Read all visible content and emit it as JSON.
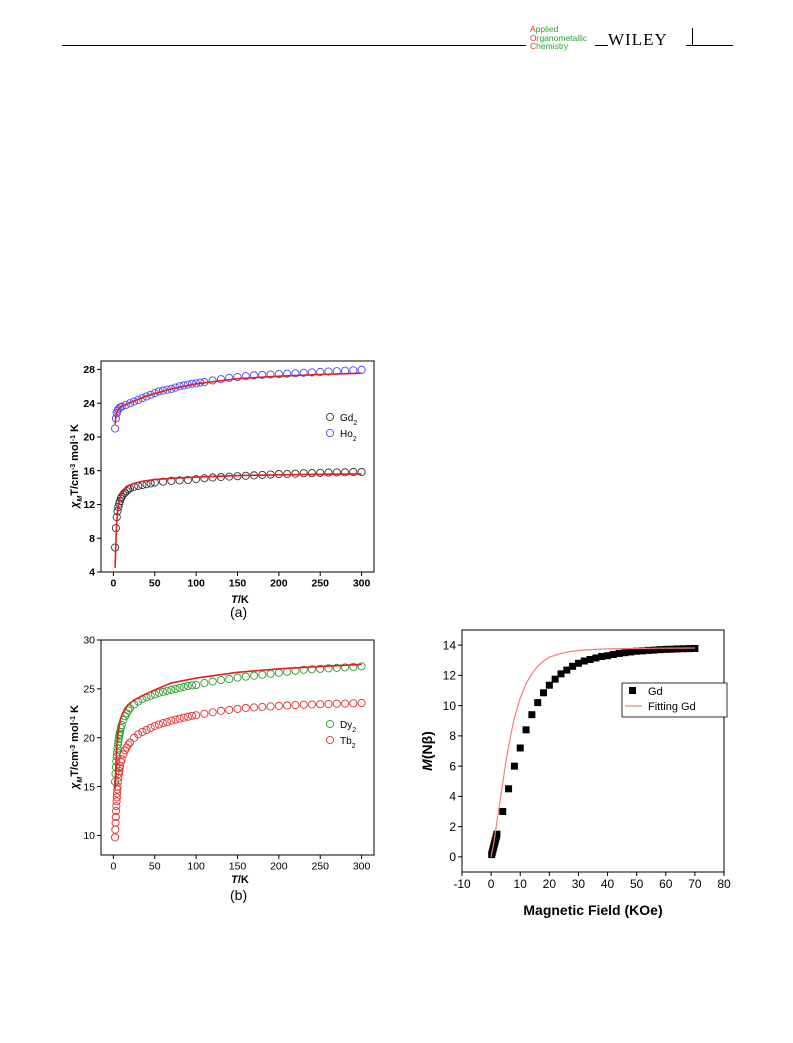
{
  "header": {
    "journal_lines": [
      {
        "initial": "A",
        "rest": "pplied"
      },
      {
        "initial": "O",
        "rest": "rganometallic"
      },
      {
        "initial": "C",
        "rest": "hemistry"
      }
    ],
    "publisher": "WILEY",
    "colors": {
      "initial": "#e0312c",
      "rest": "#2aa02a"
    }
  },
  "panel_labels": {
    "a": "(a)",
    "b": "(b)"
  },
  "chart_data": [
    {
      "type": "scatter",
      "panel": "(a)",
      "ylabel_main": "χ",
      "ylabel_sub": "M",
      "ylabel_rest": "T/cm",
      "ylabel_sup": "-3",
      "ylabel_tail": " mol",
      "ylabel_sup2": "-1",
      "ylabel_end": " K",
      "xlabel_italic": "T",
      "xlabel_rest": "/K",
      "xlim": [
        -15,
        315
      ],
      "ylim": [
        4,
        29
      ],
      "xticks": [
        0,
        50,
        100,
        150,
        200,
        250,
        300
      ],
      "yticks": [
        4,
        8,
        12,
        16,
        20,
        24,
        28
      ],
      "legend": [
        {
          "base": "Gd",
          "sub": "2",
          "color": "#333333"
        },
        {
          "base": "Ho",
          "sub": "2",
          "color": "#4a4aff"
        }
      ],
      "series": [
        {
          "name": "Gd2",
          "color": "#333333",
          "x": [
            2,
            3,
            4,
            5,
            6,
            7,
            8,
            9,
            10,
            12,
            14,
            16,
            18,
            20,
            25,
            30,
            35,
            40,
            45,
            50,
            60,
            70,
            80,
            90,
            100,
            110,
            120,
            130,
            140,
            150,
            160,
            170,
            180,
            190,
            200,
            210,
            220,
            230,
            240,
            250,
            260,
            270,
            280,
            290,
            300
          ],
          "y": [
            6.9,
            9.2,
            10.5,
            11.2,
            11.7,
            12.1,
            12.4,
            12.7,
            12.9,
            13.2,
            13.4,
            13.6,
            13.8,
            13.9,
            14.1,
            14.2,
            14.3,
            14.4,
            14.5,
            14.6,
            14.7,
            14.8,
            14.85,
            14.9,
            15.0,
            15.1,
            15.2,
            15.25,
            15.3,
            15.35,
            15.4,
            15.45,
            15.5,
            15.55,
            15.6,
            15.62,
            15.65,
            15.7,
            15.72,
            15.75,
            15.78,
            15.8,
            15.82,
            15.85,
            15.85
          ]
        },
        {
          "name": "Ho2",
          "color": "#4a4aff",
          "x": [
            2,
            3,
            4,
            5,
            6,
            8,
            10,
            15,
            20,
            25,
            30,
            35,
            40,
            45,
            50,
            55,
            60,
            65,
            70,
            75,
            80,
            85,
            90,
            95,
            100,
            105,
            110,
            120,
            130,
            140,
            150,
            160,
            170,
            180,
            190,
            200,
            210,
            220,
            230,
            240,
            250,
            260,
            270,
            280,
            290,
            300
          ],
          "y": [
            21.0,
            22.2,
            22.8,
            23.1,
            23.3,
            23.5,
            23.6,
            23.8,
            24.0,
            24.2,
            24.4,
            24.6,
            24.8,
            25.0,
            25.2,
            25.4,
            25.5,
            25.6,
            25.7,
            25.85,
            26.0,
            26.1,
            26.2,
            26.3,
            26.35,
            26.45,
            26.5,
            26.7,
            26.85,
            27.0,
            27.1,
            27.2,
            27.3,
            27.35,
            27.4,
            27.45,
            27.5,
            27.55,
            27.6,
            27.65,
            27.7,
            27.75,
            27.8,
            27.85,
            27.9,
            27.95
          ]
        }
      ],
      "fits": [
        {
          "name": "Gd2 fit",
          "color": "#e02020",
          "x": [
            2,
            3,
            4,
            5,
            6,
            8,
            10,
            14,
            18,
            25,
            35,
            50,
            70,
            100,
            150,
            200,
            250,
            300
          ],
          "y": [
            4.5,
            7.6,
            9.7,
            11.0,
            11.9,
            12.8,
            13.3,
            13.9,
            14.2,
            14.5,
            14.75,
            14.95,
            15.1,
            15.25,
            15.42,
            15.52,
            15.58,
            15.62
          ]
        },
        {
          "name": "Ho2 fit",
          "color": "#e02020",
          "x": [
            2,
            3,
            4,
            6,
            8,
            10,
            15,
            20,
            30,
            40,
            50,
            70,
            100,
            150,
            200,
            250,
            300
          ],
          "y": [
            21.5,
            22.4,
            22.9,
            23.3,
            23.5,
            23.65,
            23.85,
            24.05,
            24.45,
            24.85,
            25.15,
            25.7,
            26.3,
            26.9,
            27.2,
            27.4,
            27.55
          ]
        }
      ]
    },
    {
      "type": "scatter",
      "panel": "(b)",
      "ylabel_main": "χ",
      "ylabel_sub": "M",
      "ylabel_rest": "T/cm",
      "ylabel_sup": "-3",
      "ylabel_tail": " mol",
      "ylabel_sup2": "-1",
      "ylabel_end": " K",
      "xlabel_italic": "T",
      "xlabel_rest": "/K",
      "xlim": [
        -15,
        315
      ],
      "ylim": [
        8,
        30
      ],
      "xticks": [
        0,
        50,
        100,
        150,
        200,
        250,
        300
      ],
      "yticks": [
        10,
        15,
        20,
        25,
        30
      ],
      "legend": [
        {
          "base": "Dy",
          "sub": "2",
          "color": "#2a9a2a"
        },
        {
          "base": "Tb",
          "sub": "2",
          "color": "#e03030"
        }
      ],
      "series": [
        {
          "name": "Dy2",
          "color": "#2a9a2a",
          "x": [
            2,
            2.5,
            3,
            3.5,
            4,
            4.5,
            5,
            5.5,
            6,
            6.5,
            7,
            7.5,
            8,
            9,
            10,
            12,
            14,
            16,
            18,
            20,
            25,
            30,
            35,
            40,
            45,
            50,
            55,
            60,
            65,
            70,
            75,
            80,
            85,
            90,
            95,
            100,
            110,
            120,
            130,
            140,
            150,
            160,
            170,
            180,
            190,
            200,
            210,
            220,
            230,
            240,
            250,
            260,
            270,
            280,
            290,
            300
          ],
          "y": [
            15.5,
            16.3,
            17.0,
            17.6,
            18.1,
            18.5,
            18.9,
            19.3,
            19.6,
            19.9,
            20.2,
            20.4,
            20.6,
            21.0,
            21.3,
            21.8,
            22.2,
            22.5,
            22.8,
            23.0,
            23.4,
            23.7,
            23.95,
            24.15,
            24.3,
            24.45,
            24.6,
            24.7,
            24.8,
            24.9,
            25.0,
            25.1,
            25.2,
            25.3,
            25.35,
            25.4,
            25.6,
            25.75,
            25.9,
            26.0,
            26.15,
            26.25,
            26.35,
            26.45,
            26.55,
            26.65,
            26.75,
            26.85,
            26.95,
            27.0,
            27.05,
            27.1,
            27.15,
            27.2,
            27.25,
            27.3
          ]
        },
        {
          "name": "Tb2",
          "color": "#e03030",
          "x": [
            2,
            2.3,
            2.6,
            2.9,
            3.2,
            3.5,
            3.8,
            4.1,
            4.4,
            4.7,
            5,
            5.5,
            6,
            6.5,
            7,
            7.5,
            8,
            9,
            10,
            12,
            14,
            16,
            18,
            20,
            25,
            30,
            35,
            40,
            45,
            50,
            55,
            60,
            65,
            70,
            75,
            80,
            85,
            90,
            95,
            100,
            110,
            120,
            130,
            140,
            150,
            160,
            170,
            180,
            190,
            200,
            210,
            220,
            230,
            240,
            250,
            260,
            270,
            280,
            290,
            300
          ],
          "y": [
            9.8,
            10.6,
            11.3,
            11.9,
            12.5,
            13.0,
            13.5,
            13.9,
            14.3,
            14.7,
            15.0,
            15.5,
            15.9,
            16.3,
            16.6,
            16.9,
            17.1,
            17.5,
            17.8,
            18.3,
            18.7,
            19.0,
            19.3,
            19.5,
            20.0,
            20.35,
            20.6,
            20.8,
            21.0,
            21.2,
            21.35,
            21.5,
            21.6,
            21.75,
            21.85,
            21.95,
            22.05,
            22.15,
            22.25,
            22.3,
            22.45,
            22.6,
            22.75,
            22.85,
            22.95,
            23.05,
            23.1,
            23.15,
            23.2,
            23.25,
            23.3,
            23.35,
            23.38,
            23.4,
            23.43,
            23.45,
            23.48,
            23.5,
            23.52,
            23.55
          ]
        }
      ],
      "fits": [
        {
          "name": "Dy2 fit",
          "color": "#e02020",
          "x": [
            2,
            3,
            4,
            5,
            6,
            8,
            10,
            14,
            18,
            25,
            35,
            50,
            70,
            100,
            150,
            200,
            250,
            300
          ],
          "y": [
            14.8,
            17.2,
            18.8,
            19.9,
            20.7,
            21.7,
            22.3,
            23.0,
            23.4,
            23.85,
            24.3,
            24.9,
            25.6,
            26.1,
            26.7,
            27.05,
            27.3,
            27.5
          ]
        }
      ]
    },
    {
      "type": "scatter",
      "xlabel": "Magnetic Field (KOe)",
      "ylabel_main": "M",
      "ylabel_rest": "(Nβ)",
      "xlim": [
        -10,
        80
      ],
      "ylim": [
        -1,
        15
      ],
      "xticks": [
        -10,
        0,
        10,
        20,
        30,
        40,
        50,
        60,
        70,
        80
      ],
      "yticks": [
        0,
        2,
        4,
        6,
        8,
        10,
        12,
        14
      ],
      "legend": [
        {
          "label": "Gd",
          "marker": "square",
          "color": "#000000"
        },
        {
          "label": "Fitting Gd",
          "marker": "line",
          "color": "#f08080"
        }
      ],
      "series": [
        {
          "name": "Gd",
          "color": "#000000",
          "x": [
            0.2,
            0.4,
            0.6,
            0.8,
            1.0,
            1.2,
            1.4,
            1.6,
            1.8,
            2.0,
            4,
            6,
            8,
            10,
            12,
            14,
            16,
            18,
            20,
            22,
            24,
            26,
            28,
            30,
            32,
            34,
            36,
            38,
            40,
            42,
            44,
            46,
            48,
            50,
            52,
            54,
            56,
            58,
            60,
            62,
            64,
            66,
            68,
            70
          ],
          "y": [
            0.15,
            0.3,
            0.45,
            0.6,
            0.75,
            0.9,
            1.05,
            1.2,
            1.35,
            1.5,
            3.0,
            4.5,
            6.0,
            7.2,
            8.4,
            9.4,
            10.2,
            10.85,
            11.35,
            11.75,
            12.1,
            12.35,
            12.6,
            12.8,
            12.95,
            13.05,
            13.15,
            13.25,
            13.3,
            13.38,
            13.45,
            13.5,
            13.55,
            13.6,
            13.62,
            13.65,
            13.67,
            13.7,
            13.72,
            13.73,
            13.75,
            13.76,
            13.77,
            13.78
          ]
        }
      ],
      "fits": [
        {
          "name": "Fitting Gd",
          "color": "#f08080",
          "x": [
            0,
            1,
            2,
            3,
            4,
            5,
            6,
            7,
            8,
            10,
            12,
            14,
            16,
            18,
            20,
            24,
            28,
            32,
            36,
            40,
            45,
            50,
            55,
            60,
            65,
            70
          ],
          "y": [
            0,
            1.0,
            2.3,
            3.6,
            4.9,
            6.2,
            7.3,
            8.3,
            9.2,
            10.5,
            11.45,
            12.1,
            12.6,
            12.95,
            13.2,
            13.45,
            13.6,
            13.68,
            13.72,
            13.75,
            13.77,
            13.78,
            13.79,
            13.8,
            13.8,
            13.81
          ]
        }
      ]
    }
  ]
}
